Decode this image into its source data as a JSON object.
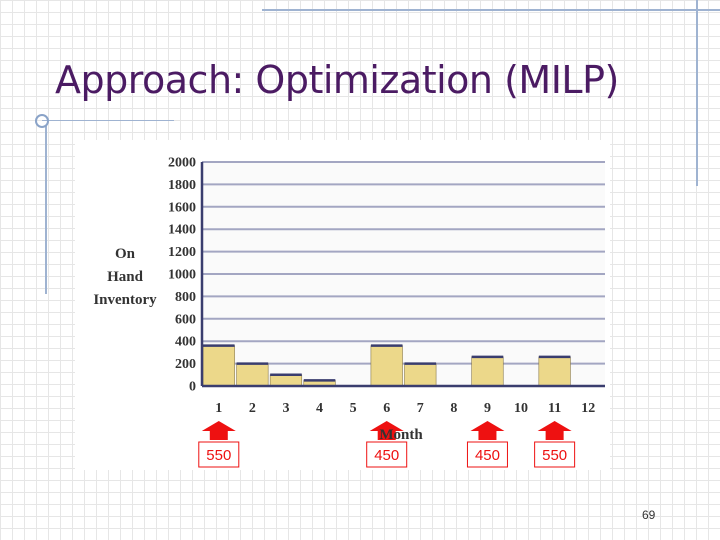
{
  "slide": {
    "title": "Approach: Optimization (MILP)",
    "page_number": "69"
  },
  "chart_data": {
    "type": "bar",
    "ylabel_lines": [
      "On",
      "Hand",
      "Inventory"
    ],
    "xlabel": "Month",
    "ylim": [
      0,
      2000
    ],
    "yticks": [
      0,
      200,
      400,
      600,
      800,
      1000,
      1200,
      1400,
      1600,
      1800,
      2000
    ],
    "grid": true,
    "categories": [
      "1",
      "2",
      "3",
      "4",
      "5",
      "6",
      "7",
      "8",
      "9",
      "10",
      "11",
      "12"
    ],
    "values": [
      360,
      200,
      100,
      50,
      0,
      360,
      200,
      0,
      260,
      0,
      260,
      0
    ],
    "bar_color": "#ecd88a",
    "orders": [
      {
        "month": "1",
        "quantity": "550"
      },
      {
        "month": "6",
        "quantity": "450"
      },
      {
        "month": "9",
        "quantity": "450"
      },
      {
        "month": "11",
        "quantity": "550"
      }
    ],
    "order_color": "#ee1111"
  }
}
